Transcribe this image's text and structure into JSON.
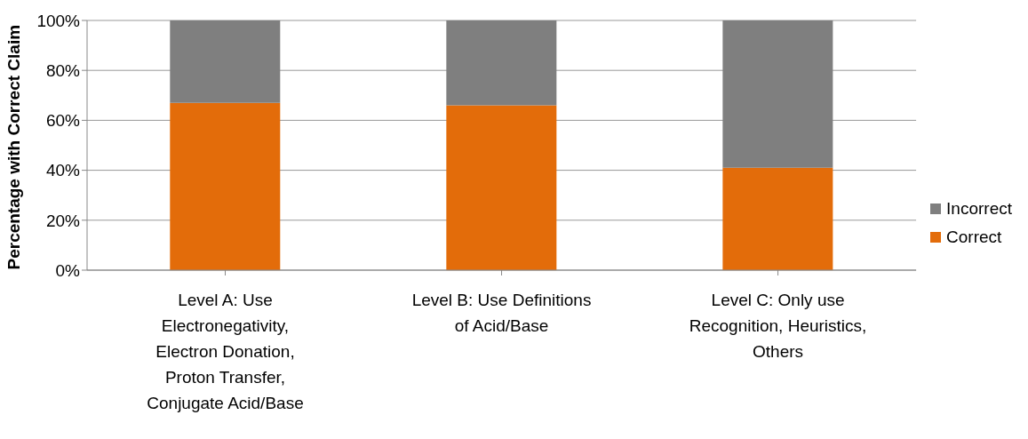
{
  "chart_data": {
    "type": "bar",
    "stacked": true,
    "ylabel": "Percentage with Correct Claim",
    "categories": [
      "Level A: Use Electronegativity, Electron Donation, Proton Transfer, Conjugate Acid/Base",
      "Level B: Use Definitions of Acid/Base",
      "Level C: Only use Recognition, Heuristics, Others"
    ],
    "series": [
      {
        "name": "Correct",
        "color": "#e36c0a",
        "values": [
          67,
          66,
          41
        ]
      },
      {
        "name": "Incorrect",
        "color": "#7f7f7f",
        "values": [
          33,
          34,
          59
        ]
      }
    ],
    "ylim": [
      0,
      100
    ],
    "yticks": [
      {
        "value": 0,
        "label": "0%"
      },
      {
        "value": 20,
        "label": "20%"
      },
      {
        "value": 40,
        "label": "40%"
      },
      {
        "value": 60,
        "label": "60%"
      },
      {
        "value": 80,
        "label": "80%"
      },
      {
        "value": 100,
        "label": "100%"
      }
    ],
    "grid": "y",
    "legend": "right"
  }
}
